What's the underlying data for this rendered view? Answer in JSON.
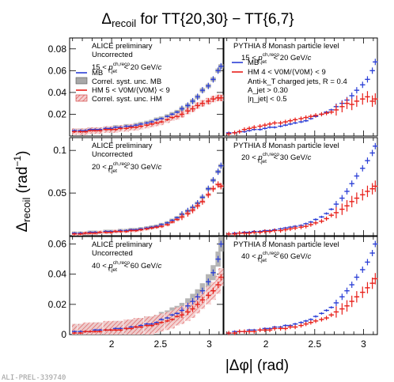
{
  "figure": {
    "title_main": "Δ",
    "title_sub": "recoil",
    "title_rest": " for TT{20,30} − TT{6,7}",
    "ylabel_main": "Δ",
    "ylabel_sub": "recoil",
    "ylabel_unit": " (rad",
    "ylabel_exp": "−1",
    "ylabel_close": ")",
    "xlabel": "|Δφ| (rad)",
    "preliminary_tag": "ALI-PREL-339740"
  },
  "colors": {
    "mb": "#2b3fd6",
    "hm": "#e8201a",
    "mb_syst": "#a8a8a8",
    "hm_syst": "#e9a5a5",
    "grid": "#000000"
  },
  "chart_data": [
    {
      "type": "scatter",
      "row": 0,
      "col": 0,
      "xlim": [
        1.57,
        3.1416
      ],
      "ylim": [
        0,
        0.09
      ],
      "yticks": [
        0.02,
        0.04,
        0.06,
        0.08
      ],
      "ytick_labels": [
        "0.02",
        "0.04",
        "0.06",
        "0.08"
      ],
      "xticks": [
        2,
        2.5,
        3
      ],
      "xtick_labels": [],
      "text": [
        "ALICE preliminary",
        "Uncorrected"
      ],
      "range_text": {
        "lo": "15 < ",
        "p": "p",
        "sup": "ch,reco",
        "sub": "T,jet",
        "hi": " < 20 GeV/",
        "c": "c"
      },
      "legend": [
        "MB",
        "Correl. syst. unc. MB",
        "HM   5 < V0M/⟨V0M⟩ < 9",
        "Correl. syst. unc. HM"
      ],
      "x": [
        1.62,
        1.68,
        1.73,
        1.78,
        1.83,
        1.88,
        1.94,
        1.99,
        2.04,
        2.09,
        2.15,
        2.2,
        2.25,
        2.3,
        2.36,
        2.41,
        2.46,
        2.51,
        2.57,
        2.62,
        2.67,
        2.72,
        2.78,
        2.83,
        2.88,
        2.93,
        2.99,
        3.04,
        3.09,
        3.12
      ],
      "series": [
        {
          "name": "MB",
          "syst": 0.002,
          "values": [
            0.005,
            0.005,
            0.005,
            0.006,
            0.006,
            0.006,
            0.007,
            0.007,
            0.008,
            0.008,
            0.009,
            0.009,
            0.01,
            0.011,
            0.012,
            0.013,
            0.015,
            0.016,
            0.018,
            0.02,
            0.022,
            0.025,
            0.028,
            0.032,
            0.036,
            0.042,
            0.046,
            0.052,
            0.06,
            0.064
          ]
        },
        {
          "name": "HM",
          "syst": 0.003,
          "values": [
            0.004,
            0.004,
            0.004,
            0.005,
            0.005,
            0.005,
            0.006,
            0.006,
            0.006,
            0.007,
            0.007,
            0.008,
            0.008,
            0.009,
            0.01,
            0.011,
            0.012,
            0.013,
            0.015,
            0.017,
            0.018,
            0.02,
            0.023,
            0.025,
            0.028,
            0.03,
            0.032,
            0.034,
            0.035,
            0.035
          ]
        }
      ]
    },
    {
      "type": "scatter",
      "row": 0,
      "col": 1,
      "xlim": [
        1.57,
        3.1416
      ],
      "ylim": [
        0,
        0.09
      ],
      "xticks": [
        2,
        2.5,
        3
      ],
      "xtick_labels": [],
      "text": [
        "PYTHIA 8 Monash particle level",
        "Anti-k_T charged jets, R = 0.4",
        "A_jet > 0.30",
        "|η_jet| < 0.5"
      ],
      "range_text": {
        "lo": "15 < ",
        "p": "p",
        "sup": "ch,reco",
        "sub": "T,jet",
        "hi": " < 20 GeV/",
        "c": "c"
      },
      "legend": [
        "MB",
        "HM   4 < V0M/⟨V0M⟩ < 9"
      ],
      "x": [
        1.62,
        1.68,
        1.73,
        1.78,
        1.83,
        1.88,
        1.94,
        1.99,
        2.04,
        2.09,
        2.15,
        2.2,
        2.25,
        2.3,
        2.36,
        2.41,
        2.46,
        2.51,
        2.57,
        2.62,
        2.67,
        2.72,
        2.78,
        2.83,
        2.88,
        2.93,
        2.99,
        3.04,
        3.09,
        3.12
      ],
      "series": [
        {
          "name": "MB",
          "values": [
            0.003,
            0.003,
            0.004,
            0.004,
            0.005,
            0.006,
            0.006,
            0.007,
            0.008,
            0.008,
            0.009,
            0.01,
            0.011,
            0.012,
            0.013,
            0.014,
            0.016,
            0.018,
            0.02,
            0.022,
            0.024,
            0.027,
            0.03,
            0.033,
            0.037,
            0.042,
            0.047,
            0.052,
            0.06,
            0.068
          ]
        },
        {
          "name": "HM",
          "values": [
            0.002,
            0.003,
            0.004,
            0.006,
            0.007,
            0.008,
            0.009,
            0.01,
            0.011,
            0.012,
            0.012,
            0.013,
            0.014,
            0.015,
            0.016,
            0.017,
            0.018,
            0.019,
            0.02,
            0.021,
            0.022,
            0.024,
            0.027,
            0.03,
            0.029,
            0.032,
            0.034,
            0.036,
            0.032,
            0.034
          ]
        }
      ]
    },
    {
      "type": "scatter",
      "row": 1,
      "col": 0,
      "xlim": [
        1.57,
        3.1416
      ],
      "ylim": [
        0,
        0.115
      ],
      "yticks": [
        0.05,
        0.1
      ],
      "ytick_labels": [
        "0.05",
        "0.1"
      ],
      "xticks": [
        2,
        2.5,
        3
      ],
      "xtick_labels": [],
      "text": [
        "ALICE preliminary",
        "Uncorrected"
      ],
      "range_text": {
        "lo": "20 < ",
        "p": "p",
        "sup": "ch,reco",
        "sub": "T,jet",
        "hi": " < 30 GeV/",
        "c": "c"
      },
      "x": [
        1.62,
        1.68,
        1.73,
        1.78,
        1.83,
        1.88,
        1.94,
        1.99,
        2.04,
        2.09,
        2.15,
        2.2,
        2.25,
        2.3,
        2.36,
        2.41,
        2.46,
        2.51,
        2.57,
        2.62,
        2.67,
        2.72,
        2.78,
        2.83,
        2.88,
        2.93,
        2.99,
        3.04,
        3.09,
        3.12
      ],
      "series": [
        {
          "name": "MB",
          "syst": 0.002,
          "values": [
            0.003,
            0.003,
            0.003,
            0.004,
            0.004,
            0.004,
            0.005,
            0.005,
            0.005,
            0.006,
            0.006,
            0.007,
            0.007,
            0.008,
            0.009,
            0.01,
            0.011,
            0.013,
            0.015,
            0.018,
            0.021,
            0.025,
            0.029,
            0.033,
            0.038,
            0.045,
            0.055,
            0.065,
            0.075,
            0.082
          ]
        },
        {
          "name": "HM",
          "syst": 0.002,
          "values": [
            0.002,
            0.002,
            0.003,
            0.003,
            0.003,
            0.004,
            0.004,
            0.004,
            0.005,
            0.005,
            0.005,
            0.006,
            0.006,
            0.007,
            0.008,
            0.009,
            0.01,
            0.011,
            0.013,
            0.016,
            0.019,
            0.022,
            0.026,
            0.03,
            0.035,
            0.04,
            0.048,
            0.055,
            0.06,
            0.058
          ]
        }
      ]
    },
    {
      "type": "scatter",
      "row": 1,
      "col": 1,
      "xlim": [
        1.57,
        3.1416
      ],
      "ylim": [
        0,
        0.115
      ],
      "xticks": [
        2,
        2.5,
        3
      ],
      "xtick_labels": [],
      "text": [
        "PYTHIA 8 Monash particle level"
      ],
      "range_text": {
        "lo": "20 < ",
        "p": "p",
        "sup": "ch,reco",
        "sub": "T,jet",
        "hi": " < 30 GeV/",
        "c": "c"
      },
      "x": [
        1.62,
        1.68,
        1.73,
        1.78,
        1.83,
        1.88,
        1.94,
        1.99,
        2.04,
        2.09,
        2.15,
        2.2,
        2.25,
        2.3,
        2.36,
        2.41,
        2.46,
        2.51,
        2.57,
        2.62,
        2.67,
        2.72,
        2.78,
        2.83,
        2.88,
        2.93,
        2.99,
        3.04,
        3.09,
        3.12
      ],
      "series": [
        {
          "name": "MB",
          "values": [
            0.002,
            0.003,
            0.003,
            0.004,
            0.004,
            0.005,
            0.005,
            0.006,
            0.006,
            0.007,
            0.008,
            0.009,
            0.01,
            0.011,
            0.012,
            0.014,
            0.016,
            0.019,
            0.022,
            0.026,
            0.031,
            0.037,
            0.044,
            0.052,
            0.061,
            0.07,
            0.079,
            0.088,
            0.097,
            0.105
          ]
        },
        {
          "name": "HM",
          "values": [
            0.002,
            0.002,
            0.003,
            0.003,
            0.003,
            0.004,
            0.004,
            0.005,
            0.005,
            0.006,
            0.006,
            0.007,
            0.008,
            0.009,
            0.01,
            0.011,
            0.013,
            0.015,
            0.017,
            0.02,
            0.024,
            0.027,
            0.031,
            0.035,
            0.04,
            0.044,
            0.048,
            0.052,
            0.055,
            0.058
          ]
        }
      ]
    },
    {
      "type": "scatter",
      "row": 2,
      "col": 0,
      "xlim": [
        1.57,
        3.1416
      ],
      "ylim": [
        0,
        0.065
      ],
      "yticks": [
        0,
        0.02,
        0.04,
        0.06
      ],
      "ytick_labels": [
        "0",
        "0.02",
        "0.04",
        "0.06"
      ],
      "xticks": [
        2,
        2.5,
        3
      ],
      "xtick_labels": [
        "2",
        "2.5",
        "3"
      ],
      "text": [
        "ALICE preliminary",
        "Uncorrected"
      ],
      "range_text": {
        "lo": "40 < ",
        "p": "p",
        "sup": "ch,reco",
        "sub": "T,jet",
        "hi": " < 60 GeV/",
        "c": "c"
      },
      "x": [
        1.62,
        1.68,
        1.73,
        1.78,
        1.83,
        1.88,
        1.94,
        1.99,
        2.04,
        2.09,
        2.15,
        2.2,
        2.25,
        2.3,
        2.36,
        2.41,
        2.46,
        2.51,
        2.57,
        2.62,
        2.67,
        2.72,
        2.78,
        2.83,
        2.88,
        2.93,
        2.99,
        3.04,
        3.09,
        3.12
      ],
      "series": [
        {
          "name": "MB",
          "syst": 0.005,
          "values": [
            0.002,
            0.002,
            0.002,
            0.002,
            0.003,
            0.003,
            0.003,
            0.003,
            0.004,
            0.004,
            0.004,
            0.005,
            0.005,
            0.006,
            0.007,
            0.007,
            0.008,
            0.01,
            0.011,
            0.013,
            0.014,
            0.016,
            0.019,
            0.022,
            0.025,
            0.029,
            0.035,
            0.041,
            0.05,
            0.06
          ]
        },
        {
          "name": "HM",
          "syst": 0.006,
          "values": [
            0.001,
            0.001,
            0.002,
            0.002,
            0.002,
            0.002,
            0.003,
            0.003,
            0.003,
            0.003,
            0.004,
            0.004,
            0.005,
            0.005,
            0.006,
            0.006,
            0.007,
            0.008,
            0.009,
            0.01,
            0.012,
            0.013,
            0.015,
            0.017,
            0.02,
            0.023,
            0.026,
            0.029,
            0.033,
            0.038
          ]
        }
      ]
    },
    {
      "type": "scatter",
      "row": 2,
      "col": 1,
      "xlim": [
        1.57,
        3.1416
      ],
      "ylim": [
        0,
        0.065
      ],
      "xticks": [
        2,
        2.5,
        3
      ],
      "xtick_labels": [
        "2",
        "2.5",
        "3"
      ],
      "text": [
        "PYTHIA 8 Monash particle level"
      ],
      "range_text": {
        "lo": "40 < ",
        "p": "p",
        "sup": "ch,reco",
        "sub": "T,jet",
        "hi": " < 60 GeV/",
        "c": "c"
      },
      "x": [
        1.62,
        1.68,
        1.73,
        1.78,
        1.83,
        1.88,
        1.94,
        1.99,
        2.04,
        2.09,
        2.15,
        2.2,
        2.25,
        2.3,
        2.36,
        2.41,
        2.46,
        2.51,
        2.57,
        2.62,
        2.67,
        2.72,
        2.78,
        2.83,
        2.88,
        2.93,
        2.99,
        3.04,
        3.09,
        3.12
      ],
      "series": [
        {
          "name": "MB",
          "values": [
            0.001,
            0.002,
            0.002,
            0.002,
            0.003,
            0.003,
            0.003,
            0.004,
            0.004,
            0.005,
            0.005,
            0.006,
            0.006,
            0.007,
            0.008,
            0.009,
            0.01,
            0.012,
            0.014,
            0.016,
            0.018,
            0.021,
            0.025,
            0.029,
            0.033,
            0.038,
            0.043,
            0.048,
            0.054,
            0.06
          ]
        },
        {
          "name": "HM",
          "values": [
            0.001,
            0.001,
            0.002,
            0.002,
            0.002,
            0.002,
            0.003,
            0.003,
            0.003,
            0.004,
            0.004,
            0.004,
            0.005,
            0.005,
            0.006,
            0.007,
            0.008,
            0.009,
            0.01,
            0.011,
            0.013,
            0.015,
            0.017,
            0.019,
            0.022,
            0.025,
            0.028,
            0.031,
            0.034,
            0.037
          ]
        }
      ]
    }
  ]
}
